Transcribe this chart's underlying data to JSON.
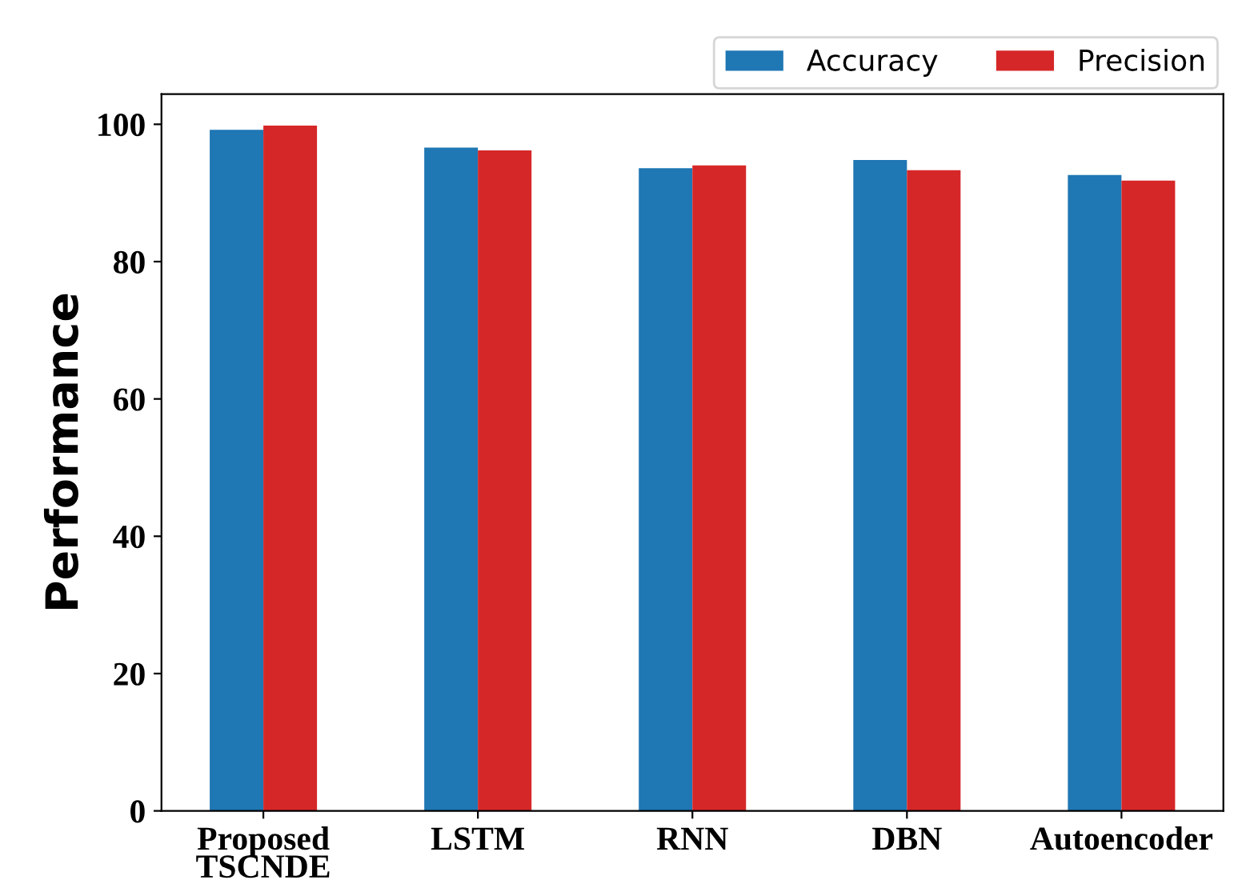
{
  "chart_data": {
    "type": "bar",
    "ylabel": "Performance",
    "categories": [
      "Proposed\nTSCNDE",
      "LSTM",
      "RNN",
      "DBN",
      "Autoencoder"
    ],
    "series": [
      {
        "name": "Accuracy",
        "color": "#1f77b4",
        "values": [
          99.2,
          96.6,
          93.6,
          94.8,
          92.6
        ]
      },
      {
        "name": "Precision",
        "color": "#d62728",
        "values": [
          99.8,
          96.2,
          94.0,
          93.3,
          91.8
        ]
      }
    ],
    "ylim": [
      0,
      104.4
    ],
    "yticks": [
      0,
      20,
      40,
      60,
      80,
      100
    ],
    "grid": false,
    "legend": "top right"
  }
}
